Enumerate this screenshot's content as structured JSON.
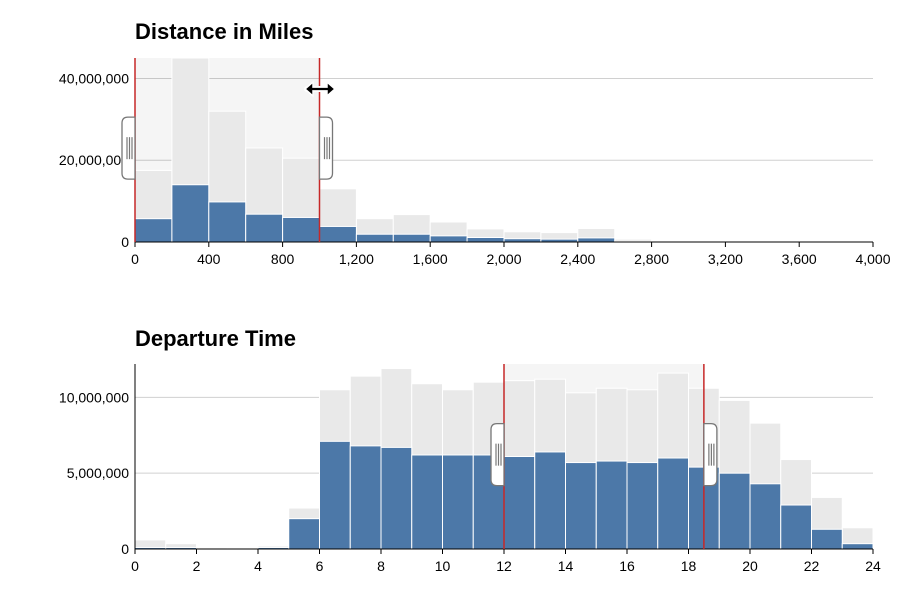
{
  "chart_data": [
    {
      "type": "bar",
      "title": "Distance in Miles",
      "xlabel": "",
      "ylabel": "",
      "xlim": [
        0,
        4000
      ],
      "ylim": [
        0,
        45000000
      ],
      "x_ticks": [
        "0",
        "400",
        "800",
        "1,200",
        "1,600",
        "2,000",
        "2,400",
        "2,800",
        "3,200",
        "3,600",
        "4,000"
      ],
      "y_ticks": [
        "0",
        "20,000,000",
        "40,000,000"
      ],
      "grid": true,
      "bin_width": 200,
      "bins": [
        0,
        200,
        400,
        600,
        800,
        1000,
        1200,
        1400,
        1600,
        1800,
        2000,
        2200,
        2400,
        2600,
        2800
      ],
      "series": [
        {
          "name": "",
          "values": [
            17500000,
            45000000,
            32000000,
            23000000,
            20500000,
            13000000,
            5700000,
            6700000,
            4900000,
            3200000,
            2500000,
            2300000,
            3300000,
            700000,
            200000
          ]
        },
        {
          "name": "",
          "values": [
            5700000,
            14000000,
            9800000,
            6800000,
            6000000,
            3800000,
            1900000,
            1900000,
            1500000,
            1100000,
            800000,
            700000,
            1000000,
            200000,
            50000
          ]
        }
      ],
      "brush": [
        0,
        1000
      ]
    },
    {
      "type": "bar",
      "title": "Departure Time",
      "xlabel": "",
      "ylabel": "",
      "xlim": [
        0,
        24
      ],
      "ylim": [
        0,
        12200000
      ],
      "x_ticks": [
        "0",
        "2",
        "4",
        "6",
        "8",
        "10",
        "12",
        "14",
        "16",
        "18",
        "20",
        "22",
        "24"
      ],
      "y_ticks": [
        "0",
        "5,000,000",
        "10,000,000"
      ],
      "grid": true,
      "bin_width": 1,
      "bins": [
        0,
        1,
        2,
        3,
        4,
        5,
        6,
        7,
        8,
        9,
        10,
        11,
        12,
        13,
        14,
        15,
        16,
        17,
        18,
        19,
        20,
        21,
        22,
        23
      ],
      "series": [
        {
          "name": "",
          "values": [
            600000,
            350000,
            100000,
            80000,
            200000,
            2700000,
            10500000,
            11400000,
            11900000,
            10900000,
            10500000,
            11000000,
            11100000,
            11200000,
            10300000,
            10600000,
            10500000,
            11600000,
            10600000,
            9800000,
            8300000,
            5900000,
            3400000,
            1400000
          ]
        },
        {
          "name": "",
          "values": [
            100000,
            100000,
            20000,
            20000,
            100000,
            2000000,
            7100000,
            6800000,
            6700000,
            6200000,
            6200000,
            6200000,
            6100000,
            6400000,
            5700000,
            5800000,
            5700000,
            6000000,
            5400000,
            5000000,
            4300000,
            2900000,
            1300000,
            350000
          ]
        }
      ],
      "brush": [
        12,
        18.5
      ]
    }
  ]
}
